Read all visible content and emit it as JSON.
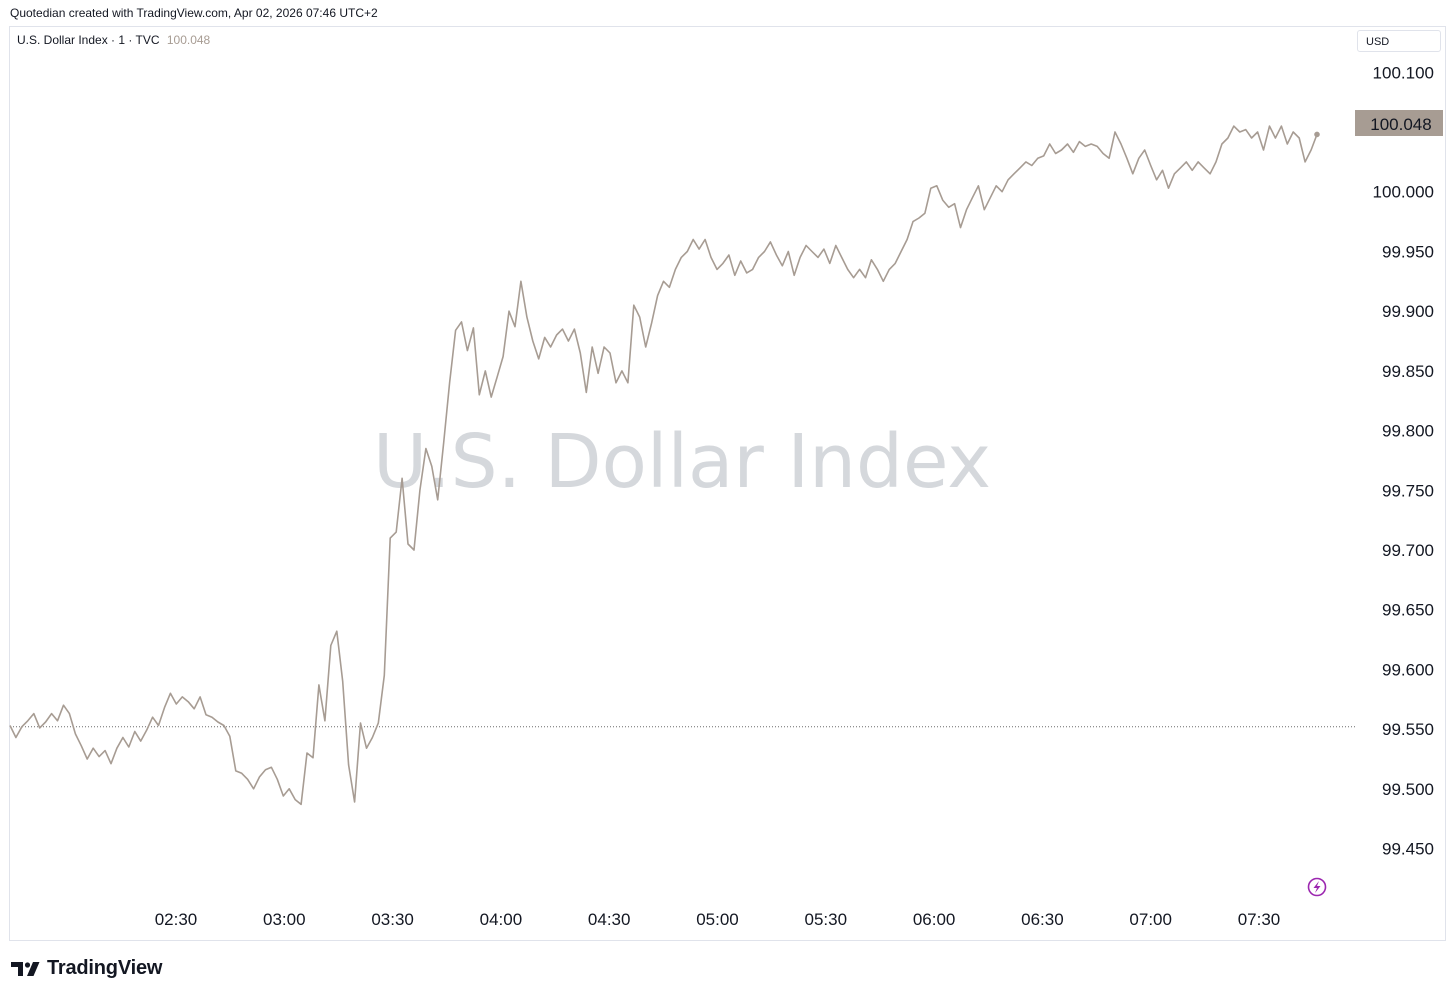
{
  "header": {
    "credit": "Quotedian created with TradingView.com, Apr 02, 2026 07:46 UTC+2"
  },
  "legend": {
    "symbol": "U.S. Dollar Index · 1 · TVC",
    "last_value": "100.048"
  },
  "currency_button": "USD",
  "watermark": "U.S. Dollar Index",
  "price_label": "100.048",
  "brand": "TradingView",
  "colors": {
    "line": "#a79c93",
    "price_label_bg": "#a79c93",
    "grid_text": "#131722",
    "watermark": "#d5d8dc",
    "lightning": "#9c27b0"
  },
  "chart_data": {
    "type": "line",
    "title": "U.S. Dollar Index",
    "y_ticks": [
      "100.100",
      "100.000",
      "99.950",
      "99.900",
      "99.850",
      "99.800",
      "99.750",
      "99.700",
      "99.650",
      "99.600",
      "99.550",
      "99.500",
      "99.450"
    ],
    "ylim": [
      99.427,
      100.112
    ],
    "x_ticks": [
      "02:30",
      "03:00",
      "03:30",
      "04:00",
      "04:30",
      "05:00",
      "05:30",
      "06:00",
      "06:30",
      "07:00",
      "07:30"
    ],
    "reference_line": 99.552,
    "last_value": 100.048,
    "series": [
      {
        "values": [
          [
            0,
            99.553
          ],
          [
            2,
            99.543
          ],
          [
            4,
            99.552
          ],
          [
            6,
            99.557
          ],
          [
            8,
            99.563
          ],
          [
            10,
            99.551
          ],
          [
            12,
            99.556
          ],
          [
            14,
            99.563
          ],
          [
            16,
            99.557
          ],
          [
            18,
            99.57
          ],
          [
            20,
            99.563
          ],
          [
            22,
            99.546
          ],
          [
            24,
            99.536
          ],
          [
            26,
            99.525
          ],
          [
            28,
            99.534
          ],
          [
            30,
            99.527
          ],
          [
            32,
            99.532
          ],
          [
            34,
            99.521
          ],
          [
            36,
            99.534
          ],
          [
            38,
            99.543
          ],
          [
            40,
            99.535
          ],
          [
            42,
            99.548
          ],
          [
            44,
            99.54
          ],
          [
            46,
            99.549
          ],
          [
            48,
            99.56
          ],
          [
            50,
            99.553
          ],
          [
            52,
            99.568
          ],
          [
            54,
            99.58
          ],
          [
            56,
            99.571
          ],
          [
            58,
            99.577
          ],
          [
            60,
            99.573
          ],
          [
            62,
            99.567
          ],
          [
            64,
            99.577
          ],
          [
            66,
            99.562
          ],
          [
            68,
            99.56
          ],
          [
            70,
            99.556
          ],
          [
            72,
            99.553
          ],
          [
            74,
            99.544
          ],
          [
            76,
            99.515
          ],
          [
            78,
            99.513
          ],
          [
            80,
            99.508
          ],
          [
            82,
            99.5
          ],
          [
            84,
            99.51
          ],
          [
            86,
            99.516
          ],
          [
            88,
            99.518
          ],
          [
            90,
            99.508
          ],
          [
            92,
            99.494
          ],
          [
            94,
            99.5
          ],
          [
            96,
            99.491
          ],
          [
            98,
            99.487
          ],
          [
            100,
            99.53
          ],
          [
            102,
            99.526
          ],
          [
            104,
            99.587
          ],
          [
            106,
            99.557
          ],
          [
            108,
            99.62
          ],
          [
            110,
            99.632
          ],
          [
            112,
            99.59
          ],
          [
            114,
            99.52
          ],
          [
            116,
            99.489
          ],
          [
            118,
            99.555
          ],
          [
            120,
            99.534
          ],
          [
            122,
            99.543
          ],
          [
            124,
            99.555
          ],
          [
            126,
            99.595
          ],
          [
            128,
            99.71
          ],
          [
            130,
            99.715
          ],
          [
            132,
            99.76
          ],
          [
            134,
            99.705
          ],
          [
            136,
            99.7
          ],
          [
            138,
            99.75
          ],
          [
            140,
            99.785
          ],
          [
            142,
            99.77
          ],
          [
            144,
            99.742
          ],
          [
            146,
            99.79
          ],
          [
            148,
            99.84
          ],
          [
            150,
            99.884
          ],
          [
            152,
            99.891
          ],
          [
            154,
            99.867
          ],
          [
            156,
            99.886
          ],
          [
            158,
            99.83
          ],
          [
            160,
            99.85
          ],
          [
            162,
            99.828
          ],
          [
            164,
            99.845
          ],
          [
            166,
            99.862
          ],
          [
            168,
            99.9
          ],
          [
            170,
            99.887
          ],
          [
            172,
            99.925
          ],
          [
            174,
            99.895
          ],
          [
            176,
            99.875
          ],
          [
            178,
            99.86
          ],
          [
            180,
            99.878
          ],
          [
            182,
            99.87
          ],
          [
            184,
            99.88
          ],
          [
            186,
            99.885
          ],
          [
            188,
            99.875
          ],
          [
            190,
            99.885
          ],
          [
            192,
            99.865
          ],
          [
            194,
            99.832
          ],
          [
            196,
            99.87
          ],
          [
            198,
            99.848
          ],
          [
            200,
            99.87
          ],
          [
            202,
            99.865
          ],
          [
            204,
            99.84
          ],
          [
            206,
            99.85
          ],
          [
            208,
            99.84
          ],
          [
            210,
            99.905
          ],
          [
            212,
            99.895
          ],
          [
            214,
            99.87
          ],
          [
            216,
            99.89
          ],
          [
            218,
            99.913
          ],
          [
            220,
            99.925
          ],
          [
            222,
            99.92
          ],
          [
            224,
            99.935
          ],
          [
            226,
            99.945
          ],
          [
            228,
            99.95
          ],
          [
            230,
            99.96
          ],
          [
            232,
            99.952
          ],
          [
            234,
            99.96
          ],
          [
            236,
            99.945
          ],
          [
            238,
            99.935
          ],
          [
            240,
            99.94
          ],
          [
            242,
            99.947
          ],
          [
            244,
            99.93
          ],
          [
            246,
            99.942
          ],
          [
            248,
            99.932
          ],
          [
            250,
            99.935
          ],
          [
            252,
            99.945
          ],
          [
            254,
            99.95
          ],
          [
            256,
            99.958
          ],
          [
            258,
            99.947
          ],
          [
            260,
            99.938
          ],
          [
            262,
            99.95
          ],
          [
            264,
            99.93
          ],
          [
            266,
            99.945
          ],
          [
            268,
            99.955
          ],
          [
            270,
            99.95
          ],
          [
            272,
            99.945
          ],
          [
            274,
            99.952
          ],
          [
            276,
            99.94
          ],
          [
            278,
            99.955
          ],
          [
            280,
            99.945
          ],
          [
            282,
            99.935
          ],
          [
            284,
            99.928
          ],
          [
            286,
            99.935
          ],
          [
            288,
            99.928
          ],
          [
            290,
            99.943
          ],
          [
            292,
            99.935
          ],
          [
            294,
            99.925
          ],
          [
            296,
            99.935
          ],
          [
            298,
            99.94
          ],
          [
            300,
            99.95
          ],
          [
            302,
            99.96
          ],
          [
            304,
            99.975
          ],
          [
            306,
            99.978
          ],
          [
            308,
            99.982
          ],
          [
            310,
            100.003
          ],
          [
            312,
            100.005
          ],
          [
            314,
            99.993
          ],
          [
            316,
            99.987
          ],
          [
            318,
            99.99
          ],
          [
            320,
            99.97
          ],
          [
            322,
            99.985
          ],
          [
            324,
            99.995
          ],
          [
            326,
            100.005
          ],
          [
            328,
            99.985
          ],
          [
            330,
            99.995
          ],
          [
            332,
            100.005
          ],
          [
            334,
            100.0
          ],
          [
            336,
            100.01
          ],
          [
            338,
            100.015
          ],
          [
            340,
            100.02
          ],
          [
            342,
            100.025
          ],
          [
            344,
            100.022
          ],
          [
            346,
            100.028
          ],
          [
            348,
            100.03
          ],
          [
            350,
            100.04
          ],
          [
            352,
            100.032
          ],
          [
            354,
            100.035
          ],
          [
            356,
            100.04
          ],
          [
            358,
            100.033
          ],
          [
            360,
            100.042
          ],
          [
            362,
            100.038
          ],
          [
            364,
            100.04
          ],
          [
            366,
            100.038
          ],
          [
            368,
            100.032
          ],
          [
            370,
            100.028
          ],
          [
            372,
            100.05
          ],
          [
            374,
            100.04
          ],
          [
            376,
            100.028
          ],
          [
            378,
            100.015
          ],
          [
            380,
            100.028
          ],
          [
            382,
            100.035
          ],
          [
            384,
            100.022
          ],
          [
            386,
            100.01
          ],
          [
            388,
            100.018
          ],
          [
            390,
            100.003
          ],
          [
            392,
            100.015
          ],
          [
            394,
            100.02
          ],
          [
            396,
            100.025
          ],
          [
            398,
            100.018
          ],
          [
            400,
            100.025
          ],
          [
            402,
            100.02
          ],
          [
            404,
            100.015
          ],
          [
            406,
            100.025
          ],
          [
            408,
            100.04
          ],
          [
            410,
            100.045
          ],
          [
            412,
            100.055
          ],
          [
            414,
            100.05
          ],
          [
            416,
            100.052
          ],
          [
            418,
            100.045
          ],
          [
            420,
            100.05
          ],
          [
            422,
            100.035
          ],
          [
            424,
            100.055
          ],
          [
            426,
            100.045
          ],
          [
            428,
            100.055
          ],
          [
            430,
            100.04
          ],
          [
            432,
            100.05
          ],
          [
            434,
            100.045
          ],
          [
            436,
            100.025
          ],
          [
            438,
            100.035
          ],
          [
            440,
            100.048
          ]
        ]
      }
    ]
  }
}
